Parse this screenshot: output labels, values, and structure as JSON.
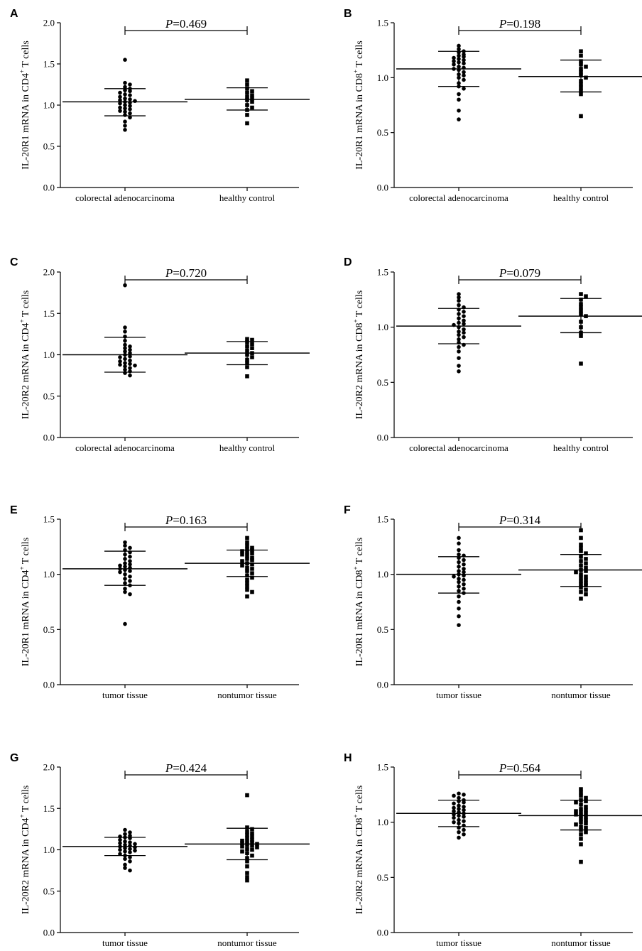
{
  "figure": {
    "panels": [
      {
        "letter": "A",
        "ylabel_parts": [
          "IL-20R1 mRNA in CD4",
          "+",
          " T cells"
        ],
        "p_label": "P",
        "p_value": "=0.469"
      },
      {
        "letter": "B",
        "ylabel_parts": [
          "IL-20R1 mRNA in CD8",
          "+",
          " T cells"
        ],
        "p_label": "P",
        "p_value": "=0.198"
      },
      {
        "letter": "C",
        "ylabel_parts": [
          "IL-20R2 mRNA in CD4",
          "+",
          " T cells"
        ],
        "p_label": "P",
        "p_value": "=0.720"
      },
      {
        "letter": "D",
        "ylabel_parts": [
          "IL-20R2 mRNA in CD8",
          "+",
          " T cells"
        ],
        "p_label": "P",
        "p_value": "=0.079"
      },
      {
        "letter": "E",
        "ylabel_parts": [
          "IL-20R1 mRNA in CD4",
          "+",
          " T cells"
        ],
        "p_label": "P",
        "p_value": "=0.163"
      },
      {
        "letter": "F",
        "ylabel_parts": [
          "IL-20R1 mRNA in CD8",
          "+",
          " T cells"
        ],
        "p_label": "P",
        "p_value": "=0.314"
      },
      {
        "letter": "G",
        "ylabel_parts": [
          "IL-20R2 mRNA in CD4",
          "+",
          " T cells"
        ],
        "p_label": "P",
        "p_value": "=0.424"
      },
      {
        "letter": "H",
        "ylabel_parts": [
          "IL-20R2 mRNA in CD8",
          "+",
          " T cells"
        ],
        "p_label": "P",
        "p_value": "=0.564"
      }
    ]
  },
  "chart_data": [
    {
      "type": "scatter",
      "panel": "A",
      "ylabel": "IL-20R1 mRNA in CD4+ T cells",
      "ylim": [
        0.0,
        2.0
      ],
      "yticks": [
        "0.0",
        "0.5",
        "1.0",
        "1.5",
        "2.0"
      ],
      "categories": [
        "colorectal adenocarcinoma",
        "healthy control"
      ],
      "annotation": "P=0.469",
      "series": [
        {
          "name": "colorectal adenocarcinoma",
          "marker": "circle",
          "mean": 1.04,
          "sd_low": 0.87,
          "sd_high": 1.2,
          "values": [
            1.55,
            1.27,
            1.25,
            1.22,
            1.2,
            1.18,
            1.17,
            1.15,
            1.13,
            1.12,
            1.1,
            1.08,
            1.07,
            1.06,
            1.05,
            1.04,
            1.03,
            1.02,
            1.0,
            0.99,
            0.97,
            0.96,
            0.95,
            0.93,
            0.92,
            0.9,
            0.88,
            0.85,
            0.8,
            0.75,
            0.7
          ]
        },
        {
          "name": "healthy control",
          "marker": "square",
          "mean": 1.07,
          "sd_low": 0.94,
          "sd_high": 1.21,
          "values": [
            1.3,
            1.25,
            1.2,
            1.17,
            1.15,
            1.12,
            1.1,
            1.08,
            1.06,
            1.04,
            1.0,
            0.97,
            0.94,
            0.88,
            0.78
          ]
        }
      ]
    },
    {
      "type": "scatter",
      "panel": "B",
      "ylabel": "IL-20R1 mRNA in CD8+ T cells",
      "ylim": [
        0.0,
        1.5
      ],
      "yticks": [
        "0.0",
        "0.5",
        "1.0",
        "1.5"
      ],
      "categories": [
        "colorectal adenocarcinoma",
        "healthy control"
      ],
      "annotation": "P=0.198",
      "series": [
        {
          "name": "colorectal adenocarcinoma",
          "marker": "circle",
          "mean": 1.08,
          "sd_low": 0.92,
          "sd_high": 1.24,
          "values": [
            1.29,
            1.26,
            1.24,
            1.23,
            1.21,
            1.2,
            1.19,
            1.18,
            1.17,
            1.16,
            1.15,
            1.14,
            1.13,
            1.12,
            1.1,
            1.09,
            1.08,
            1.07,
            1.05,
            1.03,
            1.02,
            1.0,
            0.98,
            0.95,
            0.92,
            0.9,
            0.85,
            0.8,
            0.7,
            0.62
          ]
        },
        {
          "name": "healthy control",
          "marker": "square",
          "mean": 1.01,
          "sd_low": 0.87,
          "sd_high": 1.16,
          "values": [
            1.24,
            1.2,
            1.15,
            1.12,
            1.1,
            1.08,
            1.05,
            1.02,
            1.0,
            0.97,
            0.94,
            0.91,
            0.88,
            0.85,
            0.65
          ]
        }
      ]
    },
    {
      "type": "scatter",
      "panel": "C",
      "ylabel": "IL-20R2 mRNA in CD4+ T cells",
      "ylim": [
        0.0,
        2.0
      ],
      "yticks": [
        "0.0",
        "0.5",
        "1.0",
        "1.5",
        "2.0"
      ],
      "categories": [
        "colorectal adenocarcinoma",
        "healthy control"
      ],
      "annotation": "P=0.720",
      "series": [
        {
          "name": "colorectal adenocarcinoma",
          "marker": "circle",
          "mean": 1.0,
          "sd_low": 0.79,
          "sd_high": 1.21,
          "values": [
            1.84,
            1.33,
            1.28,
            1.22,
            1.17,
            1.12,
            1.1,
            1.08,
            1.06,
            1.04,
            1.02,
            1.0,
            0.98,
            0.97,
            0.95,
            0.93,
            0.92,
            0.9,
            0.89,
            0.88,
            0.87,
            0.86,
            0.84,
            0.82,
            0.8,
            0.78,
            0.75
          ]
        },
        {
          "name": "healthy control",
          "marker": "square",
          "mean": 1.02,
          "sd_low": 0.88,
          "sd_high": 1.16,
          "values": [
            1.19,
            1.18,
            1.15,
            1.13,
            1.1,
            1.08,
            1.05,
            1.02,
            1.0,
            0.97,
            0.94,
            0.9,
            0.85,
            0.74
          ]
        }
      ]
    },
    {
      "type": "scatter",
      "panel": "D",
      "ylabel": "IL-20R2 mRNA in CD8+ T cells",
      "ylim": [
        0.0,
        1.5
      ],
      "yticks": [
        "0.0",
        "0.5",
        "1.0",
        "1.5"
      ],
      "categories": [
        "colorectal adenocarcinoma",
        "healthy control"
      ],
      "annotation": "P=0.079",
      "series": [
        {
          "name": "colorectal adenocarcinoma",
          "marker": "circle",
          "mean": 1.01,
          "sd_low": 0.85,
          "sd_high": 1.17,
          "values": [
            1.3,
            1.27,
            1.24,
            1.2,
            1.18,
            1.16,
            1.14,
            1.12,
            1.1,
            1.08,
            1.06,
            1.04,
            1.03,
            1.02,
            1.0,
            0.98,
            0.96,
            0.95,
            0.93,
            0.91,
            0.89,
            0.86,
            0.84,
            0.82,
            0.78,
            0.72,
            0.65,
            0.6
          ]
        },
        {
          "name": "healthy control",
          "marker": "square",
          "mean": 1.1,
          "sd_low": 0.95,
          "sd_high": 1.26,
          "values": [
            1.3,
            1.28,
            1.25,
            1.21,
            1.18,
            1.15,
            1.12,
            1.1,
            1.05,
            1.0,
            0.95,
            0.92,
            0.67
          ]
        }
      ]
    },
    {
      "type": "scatter",
      "panel": "E",
      "ylabel": "IL-20R1 mRNA in CD4+ T cells",
      "ylim": [
        0.0,
        1.5
      ],
      "yticks": [
        "0.0",
        "0.5",
        "1.0",
        "1.5"
      ],
      "categories": [
        "tumor tissue",
        "nontumor tissue"
      ],
      "annotation": "P=0.163",
      "series": [
        {
          "name": "tumor tissue",
          "marker": "circle",
          "mean": 1.05,
          "sd_low": 0.9,
          "sd_high": 1.21,
          "values": [
            1.29,
            1.26,
            1.24,
            1.22,
            1.2,
            1.18,
            1.16,
            1.14,
            1.12,
            1.1,
            1.09,
            1.08,
            1.07,
            1.06,
            1.05,
            1.04,
            1.03,
            1.02,
            1.0,
            0.98,
            0.96,
            0.94,
            0.92,
            0.9,
            0.87,
            0.84,
            0.82,
            0.55
          ]
        },
        {
          "name": "nontumor tissue",
          "marker": "square",
          "mean": 1.1,
          "sd_low": 0.98,
          "sd_high": 1.22,
          "values": [
            1.33,
            1.29,
            1.26,
            1.24,
            1.23,
            1.22,
            1.21,
            1.2,
            1.19,
            1.18,
            1.17,
            1.15,
            1.14,
            1.13,
            1.12,
            1.1,
            1.09,
            1.08,
            1.06,
            1.05,
            1.03,
            1.01,
            0.99,
            0.97,
            0.95,
            0.92,
            0.89,
            0.86,
            0.84,
            0.8
          ]
        }
      ]
    },
    {
      "type": "scatter",
      "panel": "F",
      "ylabel": "IL-20R1 mRNA in CD8+ T cells",
      "ylim": [
        0.0,
        1.5
      ],
      "yticks": [
        "0.0",
        "0.5",
        "1.0",
        "1.5"
      ],
      "categories": [
        "tumor tissue",
        "nontumor tissue"
      ],
      "annotation": "P=0.314",
      "series": [
        {
          "name": "tumor tissue",
          "marker": "circle",
          "mean": 1.0,
          "sd_low": 0.83,
          "sd_high": 1.16,
          "values": [
            1.33,
            1.28,
            1.22,
            1.18,
            1.17,
            1.15,
            1.13,
            1.11,
            1.09,
            1.07,
            1.05,
            1.03,
            1.02,
            1.0,
            0.99,
            0.98,
            0.96,
            0.95,
            0.93,
            0.91,
            0.89,
            0.87,
            0.85,
            0.83,
            0.8,
            0.75,
            0.69,
            0.62,
            0.54
          ]
        },
        {
          "name": "nontumor tissue",
          "marker": "square",
          "mean": 1.04,
          "sd_low": 0.89,
          "sd_high": 1.18,
          "values": [
            1.4,
            1.33,
            1.27,
            1.24,
            1.21,
            1.19,
            1.16,
            1.14,
            1.12,
            1.1,
            1.08,
            1.06,
            1.04,
            1.03,
            1.02,
            1.0,
            0.98,
            0.97,
            0.95,
            0.94,
            0.92,
            0.91,
            0.9,
            0.88,
            0.86,
            0.84,
            0.82,
            0.78
          ]
        }
      ]
    },
    {
      "type": "scatter",
      "panel": "G",
      "ylabel": "IL-20R2 mRNA in CD4+ T cells",
      "ylim": [
        0.0,
        2.0
      ],
      "yticks": [
        "0.0",
        "0.5",
        "1.0",
        "1.5",
        "2.0"
      ],
      "categories": [
        "tumor tissue",
        "nontumor tissue"
      ],
      "annotation": "P=0.424",
      "series": [
        {
          "name": "tumor tissue",
          "marker": "circle",
          "mean": 1.04,
          "sd_low": 0.93,
          "sd_high": 1.15,
          "values": [
            1.24,
            1.21,
            1.19,
            1.17,
            1.16,
            1.15,
            1.14,
            1.12,
            1.1,
            1.09,
            1.08,
            1.07,
            1.06,
            1.05,
            1.04,
            1.03,
            1.02,
            1.01,
            1.0,
            0.99,
            0.98,
            0.97,
            0.95,
            0.93,
            0.91,
            0.89,
            0.86,
            0.82,
            0.78,
            0.75
          ]
        },
        {
          "name": "nontumor tissue",
          "marker": "square",
          "mean": 1.07,
          "sd_low": 0.88,
          "sd_high": 1.26,
          "values": [
            1.66,
            1.27,
            1.25,
            1.22,
            1.2,
            1.18,
            1.16,
            1.14,
            1.12,
            1.11,
            1.1,
            1.09,
            1.08,
            1.07,
            1.06,
            1.05,
            1.04,
            1.03,
            1.01,
            1.0,
            0.98,
            0.96,
            0.93,
            0.9,
            0.86,
            0.8,
            0.72,
            0.67,
            0.63
          ]
        }
      ]
    },
    {
      "type": "scatter",
      "panel": "H",
      "ylabel": "IL-20R2 mRNA in CD8+ T cells",
      "ylim": [
        0.0,
        1.5
      ],
      "yticks": [
        "0.0",
        "0.5",
        "1.0",
        "1.5"
      ],
      "categories": [
        "tumor tissue",
        "nontumor tissue"
      ],
      "annotation": "P=0.564",
      "series": [
        {
          "name": "tumor tissue",
          "marker": "circle",
          "mean": 1.08,
          "sd_low": 0.96,
          "sd_high": 1.2,
          "values": [
            1.26,
            1.25,
            1.24,
            1.22,
            1.2,
            1.19,
            1.18,
            1.17,
            1.15,
            1.14,
            1.13,
            1.12,
            1.11,
            1.1,
            1.09,
            1.08,
            1.07,
            1.06,
            1.05,
            1.04,
            1.02,
            1.01,
            1.0,
            0.99,
            0.97,
            0.95,
            0.93,
            0.91,
            0.89,
            0.86
          ]
        },
        {
          "name": "nontumor tissue",
          "marker": "square",
          "mean": 1.06,
          "sd_low": 0.93,
          "sd_high": 1.2,
          "values": [
            1.3,
            1.27,
            1.24,
            1.22,
            1.2,
            1.19,
            1.18,
            1.16,
            1.14,
            1.12,
            1.11,
            1.1,
            1.09,
            1.08,
            1.07,
            1.06,
            1.05,
            1.03,
            1.02,
            1.0,
            0.99,
            0.98,
            0.96,
            0.95,
            0.93,
            0.91,
            0.89,
            0.85,
            0.8,
            0.64
          ]
        }
      ]
    }
  ]
}
